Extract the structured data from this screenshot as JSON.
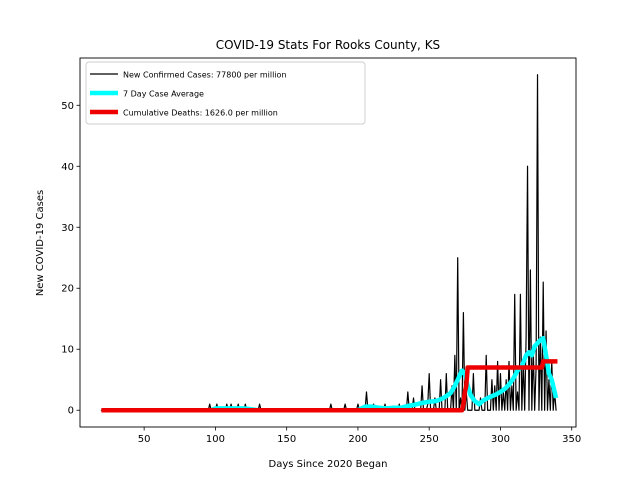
{
  "chart_data": {
    "type": "line",
    "title": "COVID-19 Stats For Rooks County, KS",
    "xlabel": "Days Since 2020 Began",
    "ylabel": "New COVID-19 Cases",
    "xlim": [
      5,
      353
    ],
    "ylim": [
      -2.75,
      57.75
    ],
    "xticks": [
      50,
      100,
      150,
      200,
      250,
      300,
      350
    ],
    "yticks": [
      0,
      10,
      20,
      30,
      40,
      50
    ],
    "legend_position": "top-left",
    "grid": false,
    "series": [
      {
        "name": "New Confirmed Cases: 77800 per million",
        "color": "#000000",
        "style": "thin",
        "points": [
          [
            20,
            0
          ],
          [
            95,
            0
          ],
          [
            96,
            1
          ],
          [
            97,
            0
          ],
          [
            100,
            0
          ],
          [
            101,
            1
          ],
          [
            102,
            0
          ],
          [
            107,
            0
          ],
          [
            108,
            1
          ],
          [
            109,
            0
          ],
          [
            110,
            0
          ],
          [
            111,
            1
          ],
          [
            112,
            0
          ],
          [
            115,
            0
          ],
          [
            116,
            1
          ],
          [
            117,
            0
          ],
          [
            120,
            0
          ],
          [
            121,
            1
          ],
          [
            122,
            0
          ],
          [
            130,
            0
          ],
          [
            131,
            1
          ],
          [
            132,
            0
          ],
          [
            180,
            0
          ],
          [
            181,
            1
          ],
          [
            182,
            0
          ],
          [
            190,
            0
          ],
          [
            191,
            1
          ],
          [
            192,
            0
          ],
          [
            199,
            0
          ],
          [
            200,
            1
          ],
          [
            201,
            0
          ],
          [
            205,
            0
          ],
          [
            206,
            3
          ],
          [
            207,
            0
          ],
          [
            210,
            0
          ],
          [
            211,
            1
          ],
          [
            212,
            0
          ],
          [
            218,
            0
          ],
          [
            219,
            1
          ],
          [
            220,
            0
          ],
          [
            228,
            0
          ],
          [
            229,
            1
          ],
          [
            230,
            0
          ],
          [
            234,
            0
          ],
          [
            235,
            3
          ],
          [
            236,
            0
          ],
          [
            238,
            0
          ],
          [
            239,
            2
          ],
          [
            240,
            0
          ],
          [
            244,
            0
          ],
          [
            245,
            4
          ],
          [
            246,
            0
          ],
          [
            248,
            0
          ],
          [
            249,
            1
          ],
          [
            250,
            6
          ],
          [
            251,
            0
          ],
          [
            253,
            0
          ],
          [
            254,
            2
          ],
          [
            255,
            0
          ],
          [
            257,
            0
          ],
          [
            258,
            5
          ],
          [
            259,
            0
          ],
          [
            261,
            0
          ],
          [
            262,
            6
          ],
          [
            263,
            0
          ],
          [
            265,
            0
          ],
          [
            266,
            4
          ],
          [
            267,
            0
          ],
          [
            268,
            9
          ],
          [
            269,
            0
          ],
          [
            270,
            25
          ],
          [
            271,
            0
          ],
          [
            272,
            2
          ],
          [
            273,
            0
          ],
          [
            274,
            16
          ],
          [
            275,
            0
          ],
          [
            276,
            3
          ],
          [
            277,
            0
          ],
          [
            280,
            0
          ],
          [
            281,
            6
          ],
          [
            282,
            0
          ],
          [
            285,
            0
          ],
          [
            286,
            2
          ],
          [
            287,
            0
          ],
          [
            289,
            0
          ],
          [
            290,
            9
          ],
          [
            291,
            0
          ],
          [
            293,
            0
          ],
          [
            294,
            5
          ],
          [
            295,
            0
          ],
          [
            296,
            4
          ],
          [
            297,
            0
          ],
          [
            298,
            8
          ],
          [
            299,
            0
          ],
          [
            300,
            6
          ],
          [
            301,
            0
          ],
          [
            302,
            3
          ],
          [
            303,
            0
          ],
          [
            304,
            5
          ],
          [
            305,
            0
          ],
          [
            306,
            8
          ],
          [
            307,
            0
          ],
          [
            308,
            4
          ],
          [
            309,
            0
          ],
          [
            310,
            19
          ],
          [
            311,
            0
          ],
          [
            312,
            3
          ],
          [
            313,
            0
          ],
          [
            314,
            19
          ],
          [
            315,
            0
          ],
          [
            316,
            8
          ],
          [
            317,
            0
          ],
          [
            318,
            12
          ],
          [
            319,
            40
          ],
          [
            320,
            0
          ],
          [
            321,
            23
          ],
          [
            322,
            0
          ],
          [
            323,
            10
          ],
          [
            324,
            0
          ],
          [
            325,
            7
          ],
          [
            326,
            55
          ],
          [
            327,
            0
          ],
          [
            328,
            12
          ],
          [
            329,
            0
          ],
          [
            330,
            21
          ],
          [
            331,
            0
          ],
          [
            332,
            13
          ],
          [
            333,
            0
          ],
          [
            334,
            5
          ],
          [
            335,
            0
          ],
          [
            336,
            8
          ],
          [
            337,
            0
          ],
          [
            338,
            3
          ],
          [
            339,
            0
          ]
        ]
      },
      {
        "name": "7 Day Case Average",
        "color": "#00ffff",
        "style": "thick",
        "points": [
          [
            97,
            0
          ],
          [
            100,
            0.3
          ],
          [
            110,
            0.3
          ],
          [
            120,
            0.3
          ],
          [
            130,
            0
          ],
          [
            200,
            0
          ],
          [
            205,
            0.6
          ],
          [
            210,
            0.6
          ],
          [
            215,
            0.4
          ],
          [
            220,
            0.3
          ],
          [
            225,
            0.4
          ],
          [
            230,
            0.4
          ],
          [
            235,
            0.7
          ],
          [
            240,
            0.9
          ],
          [
            245,
            1.2
          ],
          [
            250,
            1.4
          ],
          [
            255,
            1.5
          ],
          [
            260,
            2.0
          ],
          [
            265,
            2.8
          ],
          [
            268,
            4.0
          ],
          [
            271,
            5.5
          ],
          [
            273,
            6.5
          ],
          [
            275,
            6.0
          ],
          [
            277,
            4.0
          ],
          [
            279,
            2.5
          ],
          [
            282,
            1.5
          ],
          [
            285,
            1.0
          ],
          [
            288,
            1.6
          ],
          [
            291,
            2.0
          ],
          [
            294,
            2.3
          ],
          [
            297,
            2.6
          ],
          [
            300,
            3.0
          ],
          [
            303,
            3.5
          ],
          [
            306,
            4.2
          ],
          [
            309,
            5.2
          ],
          [
            312,
            6.5
          ],
          [
            315,
            7.2
          ],
          [
            318,
            9.0
          ],
          [
            320,
            9.5
          ],
          [
            322,
            9.0
          ],
          [
            324,
            10.5
          ],
          [
            326,
            11.0
          ],
          [
            328,
            11.5
          ],
          [
            330,
            11.8
          ],
          [
            332,
            9.0
          ],
          [
            334,
            6.0
          ],
          [
            336,
            5.0
          ],
          [
            338,
            3.0
          ],
          [
            339,
            2.0
          ]
        ]
      },
      {
        "name": "Cumulative Deaths: 1626.0 per million",
        "color": "#ee0000",
        "style": "thick",
        "points": [
          [
            20,
            0
          ],
          [
            273,
            0
          ],
          [
            274,
            1
          ],
          [
            275,
            3
          ],
          [
            276,
            4
          ],
          [
            277,
            7
          ],
          [
            329,
            7
          ],
          [
            330,
            8
          ],
          [
            340,
            8
          ]
        ]
      }
    ]
  }
}
